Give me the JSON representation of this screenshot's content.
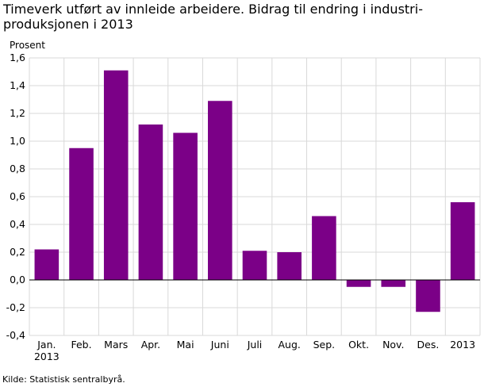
{
  "chart_data": {
    "type": "bar",
    "title": "Timeverk utført av innleide arbeidere. Bidrag til endring i industri-produksjonen i 2013",
    "title_lines": [
      "Timeverk utført av innleide arbeidere. Bidrag til endring i industri-",
      "produksjonen i 2013"
    ],
    "ylabel": "Prosent",
    "xlabel": "",
    "categories": [
      "Jan. 2013",
      "Feb.",
      "Mars",
      "Apr.",
      "Mai",
      "Juni",
      "Juli",
      "Aug.",
      "Sep.",
      "Okt.",
      "Nov.",
      "Des.",
      "2013"
    ],
    "category_lines": [
      [
        "Jan.",
        "2013"
      ],
      [
        "Feb."
      ],
      [
        "Mars"
      ],
      [
        "Apr."
      ],
      [
        "Mai"
      ],
      [
        "Juni"
      ],
      [
        "Juli"
      ],
      [
        "Aug."
      ],
      [
        "Sep."
      ],
      [
        "Okt."
      ],
      [
        "Nov."
      ],
      [
        "Des."
      ],
      [
        "2013"
      ]
    ],
    "values": [
      0.22,
      0.95,
      1.51,
      1.12,
      1.06,
      1.29,
      0.21,
      0.2,
      0.46,
      -0.05,
      -0.05,
      -0.23,
      0.56
    ],
    "ylim": [
      -0.4,
      1.6
    ],
    "yticks": [
      -0.4,
      -0.2,
      0.0,
      0.2,
      0.4,
      0.6,
      0.8,
      1.0,
      1.2,
      1.4,
      1.6
    ],
    "ytick_labels": [
      "-0,4",
      "-0,2",
      "0,0",
      "0,2",
      "0,4",
      "0,6",
      "0,8",
      "1,0",
      "1,2",
      "1,4",
      "1,6"
    ],
    "grid": true,
    "bar_color": "#7b0087"
  },
  "source": "Kilde: Statistisk sentralbyrå."
}
